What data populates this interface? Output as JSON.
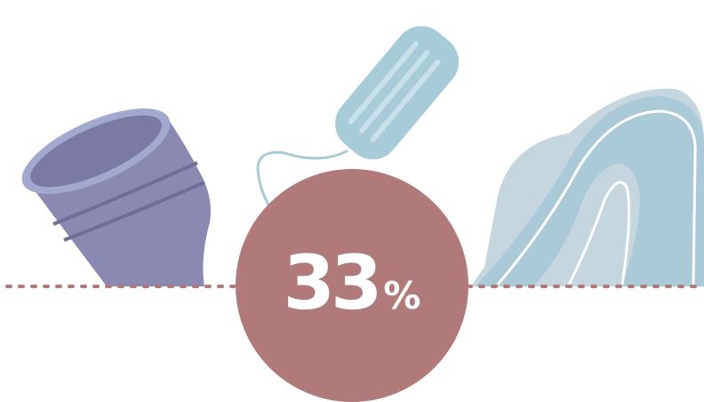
{
  "stat": {
    "number": "33",
    "unit": "%",
    "value_percent": 33
  },
  "colors": {
    "circle": "#b07a7b",
    "dotted_line": "#b07a7b",
    "cup_body": "#8a89b2",
    "cup_rim": "#a3a8cf",
    "cup_rim_inner": "#7b7aa4",
    "cup_stripe": "#6f6e99",
    "tampon": "#a8cbd8",
    "tampon_highlight": "#c8e0e8",
    "pad_backing": "#c5d6de",
    "pad_body": "#a9cad6",
    "pad_stroke": "#ffffff"
  },
  "illustrations": [
    "menstrual-cup-icon",
    "tampon-icon",
    "sanitary-pad-icon"
  ]
}
